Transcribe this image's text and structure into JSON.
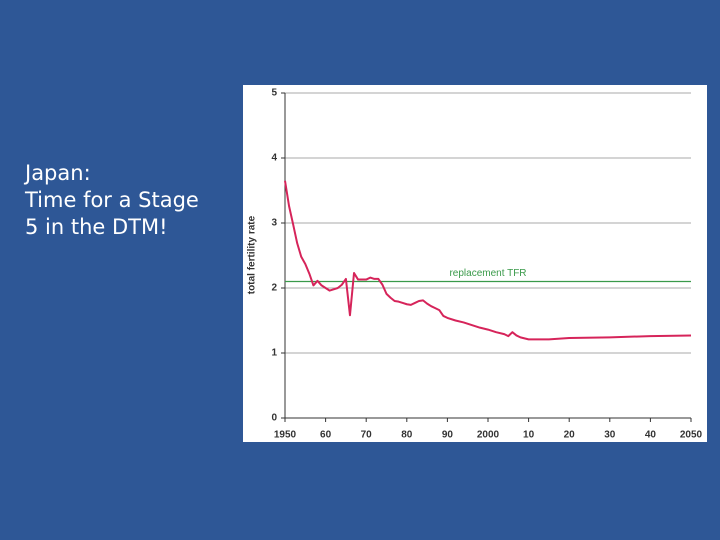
{
  "slide": {
    "text_lines": [
      "Japan:",
      "Time for a Stage",
      "5 in the DTM!"
    ]
  },
  "chart_data": {
    "type": "line",
    "y_label": "total fertility rate",
    "annotation": "replacement TFR",
    "reference_line": {
      "value": 2.1,
      "color": "#3a9a4a"
    },
    "series": [
      {
        "color": "#d6245a",
        "x": [
          1950,
          1951,
          1952,
          1953,
          1954,
          1955,
          1956,
          1957,
          1958,
          1959,
          1960,
          1961,
          1962,
          1963,
          1964,
          1965,
          1966,
          1967,
          1968,
          1969,
          1970,
          1971,
          1972,
          1973,
          1974,
          1975,
          1976,
          1977,
          1978,
          1979,
          1980,
          1981,
          1982,
          1983,
          1984,
          1985,
          1986,
          1987,
          1988,
          1989,
          1990,
          1992,
          1994,
          1996,
          1998,
          2000,
          2002,
          2004,
          2005,
          2006,
          2007,
          2008,
          2010,
          2015,
          2020,
          2030,
          2040,
          2050
        ],
        "values": [
          3.65,
          3.26,
          2.98,
          2.69,
          2.48,
          2.37,
          2.22,
          2.04,
          2.11,
          2.04,
          2.0,
          1.96,
          1.98,
          2.0,
          2.05,
          2.14,
          1.58,
          2.23,
          2.13,
          2.13,
          2.13,
          2.16,
          2.14,
          2.14,
          2.05,
          1.91,
          1.85,
          1.8,
          1.79,
          1.77,
          1.75,
          1.74,
          1.77,
          1.8,
          1.81,
          1.76,
          1.72,
          1.69,
          1.66,
          1.57,
          1.54,
          1.5,
          1.47,
          1.43,
          1.39,
          1.36,
          1.32,
          1.29,
          1.26,
          1.32,
          1.27,
          1.24,
          1.21,
          1.21,
          1.23,
          1.24,
          1.26,
          1.27
        ]
      }
    ],
    "xlim": [
      1950,
      2050
    ],
    "xticks": [
      1950,
      {
        "value": 1960,
        "label": "60"
      },
      {
        "value": 1970,
        "label": "70"
      },
      {
        "value": 1980,
        "label": "80"
      },
      {
        "value": 1990,
        "label": "90"
      },
      2000,
      {
        "value": 2010,
        "label": "10"
      },
      {
        "value": 2020,
        "label": "20"
      },
      {
        "value": 2030,
        "label": "30"
      },
      {
        "value": 2040,
        "label": "40"
      },
      2050
    ],
    "ylim": [
      0,
      5
    ],
    "yticks": [
      0,
      1,
      2,
      3,
      4,
      5
    ],
    "grid": true
  }
}
